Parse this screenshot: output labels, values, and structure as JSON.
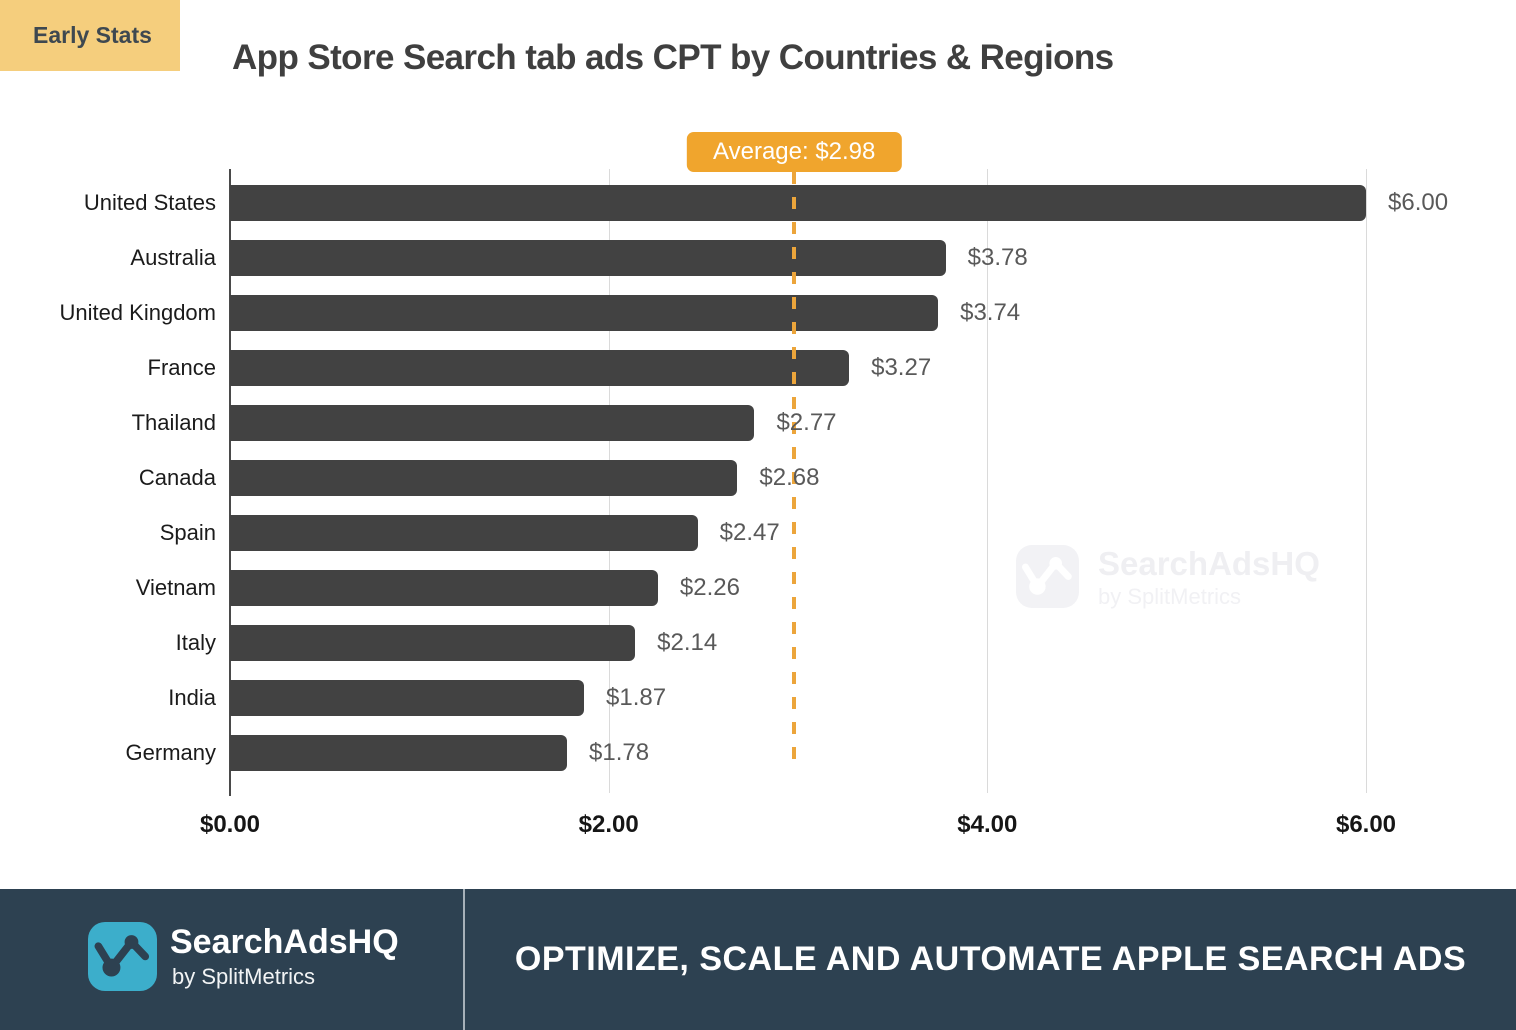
{
  "header": {
    "badge": "Early Stats",
    "title": "App Store Search tab ads CPT by Countries & Regions"
  },
  "chart_data": {
    "type": "bar",
    "orientation": "horizontal",
    "title": "App Store Search tab ads CPT by Countries & Regions",
    "categories": [
      "United States",
      "Australia",
      "United Kingdom",
      "France",
      "Thailand",
      "Canada",
      "Spain",
      "Vietnam",
      "Italy",
      "India",
      "Germany"
    ],
    "values": [
      6.0,
      3.78,
      3.74,
      3.27,
      2.77,
      2.68,
      2.47,
      2.26,
      2.14,
      1.87,
      1.78
    ],
    "value_labels": [
      "$6.00",
      "$3.78",
      "$3.74",
      "$3.27",
      "$2.77",
      "$2.68",
      "$2.47",
      "$2.26",
      "$2.14",
      "$1.87",
      "$1.78"
    ],
    "average": 2.98,
    "average_label": "Average: $2.98",
    "xlim": [
      0,
      6
    ],
    "x_ticks": [
      "$0.00",
      "$2.00",
      "$4.00",
      "$6.00"
    ],
    "x_tick_values": [
      0,
      2,
      4,
      6
    ],
    "grid": true,
    "legend": "none"
  },
  "watermark": {
    "brand": "SearchAdsHQ",
    "byline": "by SplitMetrics",
    "icon": "line-chart-icon"
  },
  "footer": {
    "brand": "SearchAdsHQ",
    "byline": "by SplitMetrics",
    "headline": "OPTIMIZE, SCALE AND AUTOMATE APPLE SEARCH ADS",
    "icon": "line-chart-icon"
  },
  "colors": {
    "bar": "#424242",
    "average_accent": "#F0A52D",
    "average_line": "#ECA53B",
    "early_badge_bg": "#F5CE7D",
    "early_badge_text": "#3E4850",
    "gridline": "#DADADA",
    "axis_line": "#4A4A4A",
    "footer_bg": "#2D4151",
    "logo_teal": "#3CAECB",
    "title_text": "#3F3F3F",
    "value_text": "#595959"
  }
}
